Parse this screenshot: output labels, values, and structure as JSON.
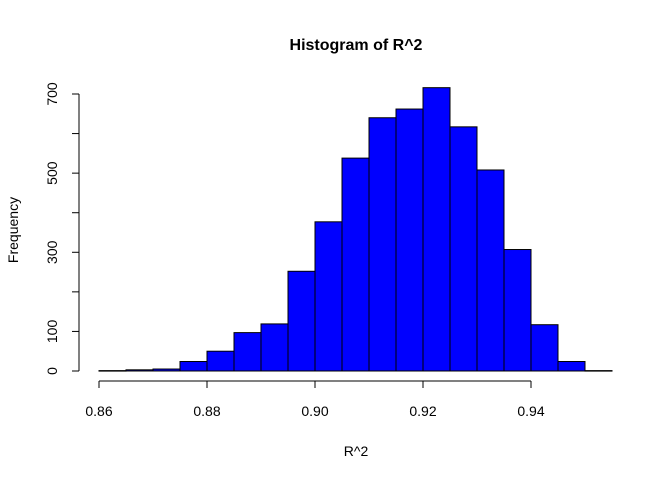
{
  "chart_data": {
    "type": "bar",
    "title": "Histogram of R^2",
    "xlabel": "R^2",
    "ylabel": "Frequency",
    "bar_color": "#0000ff",
    "bar_edge_color": "#000000",
    "grid": false,
    "xlim": [
      0.86,
      0.955
    ],
    "ylim": [
      0,
      710
    ],
    "x_ticks": [
      0.86,
      0.88,
      0.9,
      0.92,
      0.94
    ],
    "x_tick_labels": [
      "0.86",
      "0.88",
      "0.90",
      "0.92",
      "0.94"
    ],
    "y_ticks": [
      0,
      100,
      200,
      300,
      400,
      500,
      600,
      700
    ],
    "y_tick_labels": [
      "0",
      "100",
      "",
      "300",
      "",
      "500",
      "",
      "700"
    ],
    "bins": [
      {
        "start": 0.86,
        "end": 0.865,
        "count": 1
      },
      {
        "start": 0.865,
        "end": 0.87,
        "count": 3
      },
      {
        "start": 0.87,
        "end": 0.875,
        "count": 5
      },
      {
        "start": 0.875,
        "end": 0.88,
        "count": 24
      },
      {
        "start": 0.88,
        "end": 0.885,
        "count": 50
      },
      {
        "start": 0.885,
        "end": 0.89,
        "count": 97
      },
      {
        "start": 0.89,
        "end": 0.895,
        "count": 119
      },
      {
        "start": 0.895,
        "end": 0.9,
        "count": 252
      },
      {
        "start": 0.9,
        "end": 0.905,
        "count": 377
      },
      {
        "start": 0.905,
        "end": 0.91,
        "count": 538
      },
      {
        "start": 0.91,
        "end": 0.915,
        "count": 640
      },
      {
        "start": 0.915,
        "end": 0.92,
        "count": 662
      },
      {
        "start": 0.92,
        "end": 0.925,
        "count": 716
      },
      {
        "start": 0.925,
        "end": 0.93,
        "count": 617
      },
      {
        "start": 0.93,
        "end": 0.935,
        "count": 508
      },
      {
        "start": 0.935,
        "end": 0.94,
        "count": 307
      },
      {
        "start": 0.94,
        "end": 0.945,
        "count": 117
      },
      {
        "start": 0.945,
        "end": 0.95,
        "count": 24
      },
      {
        "start": 0.95,
        "end": 0.955,
        "count": 1
      }
    ]
  }
}
